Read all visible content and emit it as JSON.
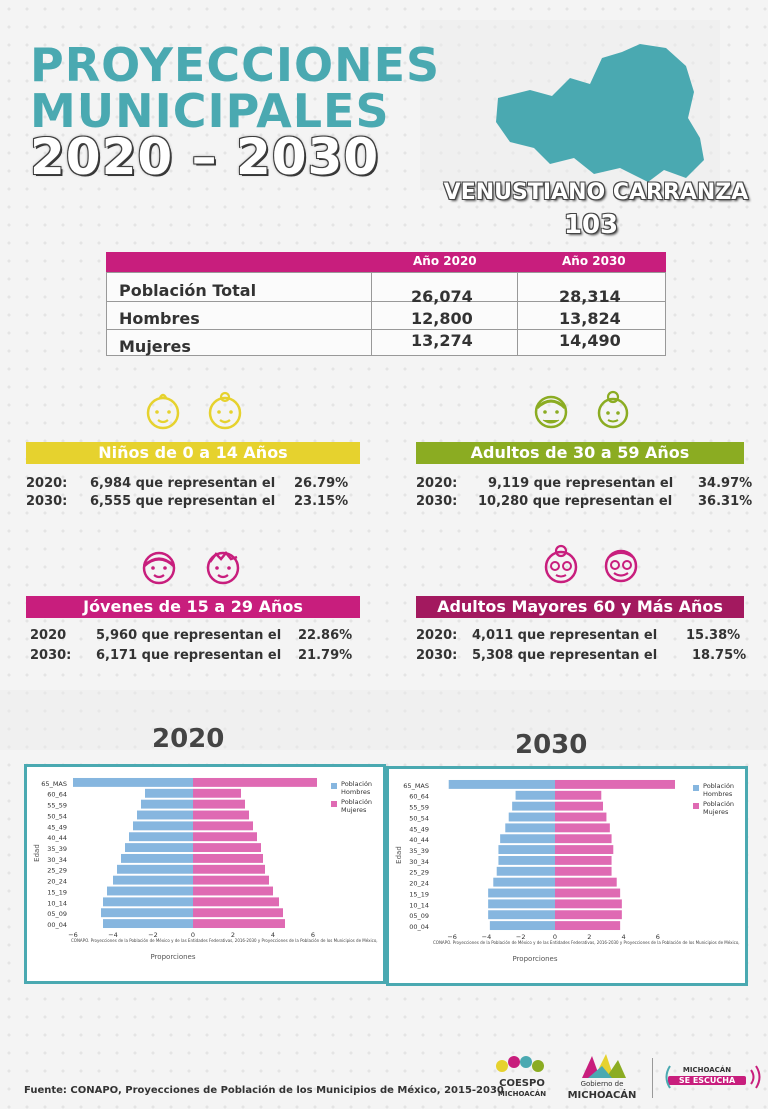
{
  "header": {
    "title_line1": "PROYECCIONES",
    "title_line2": "MUNICIPALES",
    "title_line3": "2020 – 2030",
    "municipality": "VENUSTIANO CARRANZA",
    "code": "103"
  },
  "colors": {
    "teal": "#4aa9b1",
    "magenta": "#c81e7d",
    "yellow": "#e6d22e",
    "green": "#8bac22",
    "blue_bars": "#86b6df",
    "pink_bars": "#df6ab3"
  },
  "table": {
    "col1": "Año 2020",
    "col2": "Año 2030",
    "rows": [
      {
        "label": "Población Total",
        "v2020": "26,074",
        "v2030": "28,314"
      },
      {
        "label": "Hombres",
        "v2020": "12,800",
        "v2030": "13,824"
      },
      {
        "label": "Mujeres",
        "v2020": "13,274",
        "v2030": "14,490"
      }
    ]
  },
  "groups": {
    "ninos": {
      "title": "Niños de 0 a 14 Años",
      "y2020_label": "2020:",
      "y2020_text": "6,984 que representan el",
      "y2020_pct": "26.79%",
      "y2030_label": "2030:",
      "y2030_text": "6,555 que representan el",
      "y2030_pct": "23.15%",
      "icon": "baby-face-icon"
    },
    "adultos": {
      "title": "Adultos de 30 a 59 Años",
      "y2020_label": "2020:",
      "y2020_text": "9,119 que representan el",
      "y2020_pct": "34.97%",
      "y2030_label": "2030:",
      "y2030_text": "10,280 que representan el",
      "y2030_pct": "36.31%",
      "icon": "adult-face-icon"
    },
    "jovenes": {
      "title": "Jóvenes de 15 a 29 Años",
      "y2020_label": "2020",
      "y2020_text": "5,960 que representan el",
      "y2020_pct": "22.86%",
      "y2030_label": "2030:",
      "y2030_text": "6,171 que representan el",
      "y2030_pct": "21.79%",
      "icon": "youth-face-icon"
    },
    "mayores": {
      "title": "Adultos Mayores  60 y Más Años",
      "y2020_label": "2020:",
      "y2020_text": "4,011 que representan el",
      "y2020_pct": "15.38%",
      "y2030_label": "2030:",
      "y2030_text": "5,308 que representan el",
      "y2030_pct": "18.75%",
      "icon": "elder-face-icon"
    }
  },
  "chart_data": [
    {
      "type": "bar",
      "title": "2020",
      "orientation": "horizontal",
      "ylabel": "Edad",
      "xlabel": "Proporciones",
      "xlim": [
        -6,
        6
      ],
      "x_ticks": [
        "−6",
        "−4",
        "−2",
        "0",
        "2",
        "4",
        "6"
      ],
      "source_note": "CONAPO. Proyecciones de la Población de México y de las Entidades Federativas, 2016-2030 y Proyecciones de la Población de los Municipios de México,",
      "legend_title": "Población",
      "categories": [
        "65_MAS",
        "60_64",
        "55_59",
        "50_54",
        "45_49",
        "40_44",
        "35_39",
        "30_34",
        "25_29",
        "20_24",
        "15_19",
        "10_14",
        "05_09",
        "00_04"
      ],
      "series": [
        {
          "name": "Hombres",
          "values": [
            -6.0,
            -2.4,
            -2.6,
            -2.8,
            -3.0,
            -3.2,
            -3.4,
            -3.6,
            -3.8,
            -4.0,
            -4.3,
            -4.5,
            -4.6,
            -4.5
          ]
        },
        {
          "name": "Mujeres",
          "values": [
            6.2,
            2.4,
            2.6,
            2.8,
            3.0,
            3.2,
            3.4,
            3.5,
            3.6,
            3.8,
            4.0,
            4.3,
            4.5,
            4.6
          ]
        }
      ]
    },
    {
      "type": "bar",
      "title": "2030",
      "orientation": "horizontal",
      "ylabel": "Edad",
      "xlabel": "Proporciones",
      "xlim": [
        -7,
        7
      ],
      "x_ticks": [
        "−6",
        "−4",
        "−2",
        "0",
        "2",
        "4",
        "6"
      ],
      "source_note": "CONAPO. Proyecciones de la Población de México y de las Entidades Federativas, 2016-2030 y Proyecciones de la Población de los Municipios de México,",
      "legend_title": "Población",
      "categories": [
        "65_MAS",
        "60_64",
        "55_59",
        "50_54",
        "45_49",
        "40_44",
        "35_39",
        "30_34",
        "25_29",
        "20_24",
        "15_19",
        "10_14",
        "05_09",
        "00_04"
      ],
      "series": [
        {
          "name": "Hombres",
          "values": [
            -6.2,
            -2.3,
            -2.5,
            -2.7,
            -2.9,
            -3.2,
            -3.3,
            -3.3,
            -3.4,
            -3.6,
            -3.9,
            -3.9,
            -3.9,
            -3.8
          ]
        },
        {
          "name": "Mujeres",
          "values": [
            7.0,
            2.7,
            2.8,
            3.0,
            3.2,
            3.3,
            3.4,
            3.3,
            3.3,
            3.6,
            3.8,
            3.9,
            3.9,
            3.8
          ]
        }
      ]
    }
  ],
  "footer": {
    "source": "Fuente: CONAPO, Proyecciones de Población de los Municipios de México, 2015-2030",
    "logo1": "COESPO",
    "logo1_sub": "MICHOACÁN",
    "logo2_top": "Gobierno de",
    "logo2": "MICHOACÁN",
    "logo3_top": "MICHOACÁN",
    "logo3": "SE ESCUCHA"
  }
}
